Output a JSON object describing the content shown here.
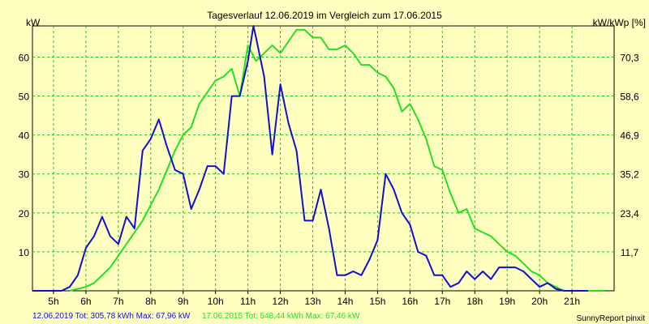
{
  "colors": {
    "background": "#ffffc0",
    "grid": "#22c022",
    "series_2019": "#1010d0",
    "series_2015": "#22e022"
  },
  "chart_data": {
    "type": "line",
    "title": "Tagesverlauf 12.06.2019 im Vergleich zum 17.06.2015",
    "ylabel_left": "kW",
    "ylabel_right": "kW/kWp [%]",
    "xlim": [
      4.35,
      22.3
    ],
    "ylim": [
      0,
      68
    ],
    "x_ticks": [
      5,
      6,
      7,
      8,
      9,
      10,
      11,
      12,
      13,
      14,
      15,
      16,
      17,
      18,
      19,
      20,
      21
    ],
    "x_tick_labels": [
      "5h",
      "6h",
      "7h",
      "8h",
      "9h",
      "10h",
      "11h",
      "12h",
      "13h",
      "14h",
      "15h",
      "16h",
      "17h",
      "18h",
      "19h",
      "20h",
      "21h"
    ],
    "y_ticks_left": [
      10,
      20,
      30,
      40,
      50,
      60
    ],
    "y_ticks_right": [
      {
        "at": 10,
        "label": "11,7"
      },
      {
        "at": 20,
        "label": "23,4"
      },
      {
        "at": 30,
        "label": "35,2"
      },
      {
        "at": 40,
        "label": "46,9"
      },
      {
        "at": 50,
        "label": "58,6"
      },
      {
        "at": 60,
        "label": "70,3"
      }
    ],
    "grid": true,
    "legend": [
      {
        "series": 0,
        "text": "12.06.2019 Tot: 305,78 kWh Max: 67,96 kW"
      },
      {
        "series": 1,
        "text": "17.06.2015 Tot: 548,44 kWh Max: 67,46 kW"
      }
    ],
    "series": [
      {
        "x": [
          4.35,
          5.0,
          5.25,
          5.5,
          5.75,
          6.0,
          6.25,
          6.5,
          6.75,
          7.0,
          7.25,
          7.5,
          7.75,
          8.0,
          8.25,
          8.5,
          8.75,
          9.0,
          9.25,
          9.5,
          9.75,
          10.0,
          10.25,
          10.5,
          10.75,
          11.0,
          11.17,
          11.25,
          11.5,
          11.75,
          12.0,
          12.25,
          12.5,
          12.75,
          13.0,
          13.25,
          13.5,
          13.75,
          14.0,
          14.25,
          14.5,
          14.75,
          15.0,
          15.25,
          15.5,
          15.75,
          16.0,
          16.25,
          16.5,
          16.75,
          17.0,
          17.25,
          17.5,
          17.75,
          18.0,
          18.25,
          18.5,
          18.75,
          19.0,
          19.25,
          19.5,
          19.75,
          20.0,
          20.25,
          20.5,
          20.75,
          21.0,
          21.25,
          21.5
        ],
        "values": [
          0,
          0,
          0,
          1,
          4,
          11,
          14,
          19,
          14,
          12,
          19,
          16,
          36,
          39,
          44,
          37,
          31,
          30,
          21,
          26,
          32,
          32,
          30,
          50,
          50,
          59,
          68,
          65,
          55,
          35,
          53,
          43,
          36,
          18,
          18,
          26,
          16,
          4,
          4,
          5,
          4,
          8,
          13,
          30,
          26,
          20,
          17,
          10,
          9,
          4,
          4,
          1,
          2,
          5,
          3,
          5,
          3,
          6,
          6,
          6,
          5,
          3,
          1,
          2,
          0.5,
          0,
          0,
          0,
          0
        ]
      },
      {
        "x": [
          5.5,
          5.75,
          6.0,
          6.25,
          6.5,
          6.75,
          7.0,
          7.25,
          7.5,
          7.75,
          8.0,
          8.25,
          8.5,
          8.75,
          9.0,
          9.25,
          9.5,
          9.75,
          10.0,
          10.25,
          10.5,
          10.75,
          11.0,
          11.25,
          11.5,
          11.75,
          12.0,
          12.25,
          12.5,
          12.75,
          13.0,
          13.25,
          13.5,
          13.75,
          14.0,
          14.25,
          14.5,
          14.75,
          15.0,
          15.25,
          15.5,
          15.75,
          16.0,
          16.25,
          16.5,
          16.75,
          17.0,
          17.25,
          17.5,
          17.75,
          18.0,
          18.25,
          18.5,
          18.75,
          19.0,
          19.25,
          19.5,
          19.75,
          20.0,
          20.25,
          20.5,
          20.75,
          21.0,
          21.25,
          21.5,
          21.75,
          22.0
        ],
        "values": [
          0,
          0.5,
          1,
          2,
          4,
          6,
          9,
          12,
          15,
          18,
          22,
          26,
          31,
          36,
          40,
          42,
          48,
          51,
          54,
          55,
          57,
          50,
          63,
          59,
          61,
          63,
          61,
          64,
          67,
          67,
          65,
          65,
          62,
          62,
          63,
          61,
          58,
          58,
          56,
          55,
          52,
          46,
          48,
          44,
          39,
          32,
          31,
          25,
          20,
          21,
          16,
          15,
          14,
          12,
          10,
          9,
          7,
          5,
          4,
          2,
          1,
          0,
          0,
          0,
          0,
          0,
          0
        ]
      }
    ]
  },
  "footer": {
    "credit": "SunnyReport pinxit"
  }
}
